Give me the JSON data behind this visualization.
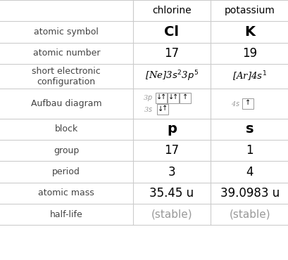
{
  "title_row": [
    "",
    "chlorine",
    "potassium"
  ],
  "rows": [
    {
      "label": "atomic symbol",
      "cl": "Cl",
      "k": "K",
      "cl_bold": true,
      "k_bold": true,
      "cl_size": 14,
      "k_size": 14
    },
    {
      "label": "atomic number",
      "cl": "17",
      "k": "19",
      "cl_bold": false,
      "k_bold": false,
      "cl_size": 12,
      "k_size": 12
    },
    {
      "label": "short electronic\nconfiguration",
      "cl": "sec_cl",
      "k": "sec_k",
      "cl_bold": false,
      "k_bold": false,
      "cl_size": 11,
      "k_size": 11
    },
    {
      "label": "Aufbau diagram",
      "cl": "aufbau_cl",
      "k": "aufbau_k",
      "cl_bold": false,
      "k_bold": false,
      "cl_size": 10,
      "k_size": 10
    },
    {
      "label": "block",
      "cl": "p",
      "k": "s",
      "cl_bold": true,
      "k_bold": true,
      "cl_size": 14,
      "k_size": 14
    },
    {
      "label": "group",
      "cl": "17",
      "k": "1",
      "cl_bold": false,
      "k_bold": false,
      "cl_size": 12,
      "k_size": 12
    },
    {
      "label": "period",
      "cl": "3",
      "k": "4",
      "cl_bold": false,
      "k_bold": false,
      "cl_size": 12,
      "k_size": 12
    },
    {
      "label": "atomic mass",
      "cl": "35.45 u",
      "k": "39.0983 u",
      "cl_bold": false,
      "k_bold": false,
      "cl_size": 12,
      "k_size": 12
    },
    {
      "label": "half-life",
      "cl": "(stable)",
      "k": "(stable)",
      "cl_bold": false,
      "k_bold": false,
      "cl_size": 11,
      "k_size": 11,
      "gray": true
    }
  ],
  "col_boundaries": [
    0.0,
    0.46,
    0.73,
    1.0
  ],
  "background_color": "#ffffff",
  "line_color": "#cccccc",
  "text_color": "#000000",
  "gray_color": "#999999",
  "label_color": "#444444"
}
